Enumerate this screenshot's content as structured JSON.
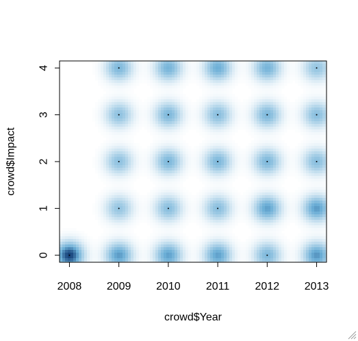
{
  "chart_data": {
    "type": "heatmap",
    "subtype": "smoothScatter",
    "title": "",
    "xlabel": "crowd$Year",
    "ylabel": "crowd$Impact",
    "xlim": [
      2007.8,
      2013.2
    ],
    "ylim": [
      -0.15,
      4.15
    ],
    "x_ticks": [
      2008,
      2009,
      2010,
      2011,
      2012,
      2013
    ],
    "x_tick_labels": [
      "2008",
      "2009",
      "2010",
      "2011",
      "2012",
      "2013"
    ],
    "y_ticks": [
      0,
      1,
      2,
      3,
      4
    ],
    "y_tick_labels": [
      "0",
      "1",
      "2",
      "3",
      "4"
    ],
    "grid": false,
    "legend": "none",
    "colors": {
      "low": "#ffffff",
      "mid": "#6baed6",
      "high": "#08306b"
    },
    "density_points": [
      {
        "x": 2008,
        "y": 0,
        "density": 1.0
      },
      {
        "x": 2009,
        "y": 0,
        "density": 0.7
      },
      {
        "x": 2010,
        "y": 0,
        "density": 0.68
      },
      {
        "x": 2011,
        "y": 0,
        "density": 0.68
      },
      {
        "x": 2012,
        "y": 0,
        "density": 0.55
      },
      {
        "x": 2013,
        "y": 0,
        "density": 0.72
      },
      {
        "x": 2009,
        "y": 1,
        "density": 0.45
      },
      {
        "x": 2010,
        "y": 1,
        "density": 0.5
      },
      {
        "x": 2011,
        "y": 1,
        "density": 0.5
      },
      {
        "x": 2012,
        "y": 1,
        "density": 0.68
      },
      {
        "x": 2013,
        "y": 1,
        "density": 0.7
      },
      {
        "x": 2009,
        "y": 2,
        "density": 0.48
      },
      {
        "x": 2010,
        "y": 2,
        "density": 0.55
      },
      {
        "x": 2011,
        "y": 2,
        "density": 0.55
      },
      {
        "x": 2012,
        "y": 2,
        "density": 0.55
      },
      {
        "x": 2013,
        "y": 2,
        "density": 0.5
      },
      {
        "x": 2009,
        "y": 3,
        "density": 0.48
      },
      {
        "x": 2010,
        "y": 3,
        "density": 0.55
      },
      {
        "x": 2011,
        "y": 3,
        "density": 0.5
      },
      {
        "x": 2012,
        "y": 3,
        "density": 0.55
      },
      {
        "x": 2013,
        "y": 3,
        "density": 0.5
      },
      {
        "x": 2009,
        "y": 4,
        "density": 0.55
      },
      {
        "x": 2010,
        "y": 4,
        "density": 0.58
      },
      {
        "x": 2011,
        "y": 4,
        "density": 0.62
      },
      {
        "x": 2012,
        "y": 4,
        "density": 0.58
      },
      {
        "x": 2013,
        "y": 4,
        "density": 0.45
      }
    ],
    "outlier_points": [
      {
        "x": 2008,
        "y": 0
      },
      {
        "x": 2012,
        "y": 0
      },
      {
        "x": 2009,
        "y": 1
      },
      {
        "x": 2010,
        "y": 1
      },
      {
        "x": 2011,
        "y": 1
      },
      {
        "x": 2009,
        "y": 2
      },
      {
        "x": 2010,
        "y": 2
      },
      {
        "x": 2011,
        "y": 2
      },
      {
        "x": 2012,
        "y": 2
      },
      {
        "x": 2013,
        "y": 2
      },
      {
        "x": 2009,
        "y": 3
      },
      {
        "x": 2010,
        "y": 3
      },
      {
        "x": 2011,
        "y": 3
      },
      {
        "x": 2012,
        "y": 3
      },
      {
        "x": 2013,
        "y": 3
      },
      {
        "x": 2009,
        "y": 4
      },
      {
        "x": 2013,
        "y": 4
      }
    ]
  }
}
